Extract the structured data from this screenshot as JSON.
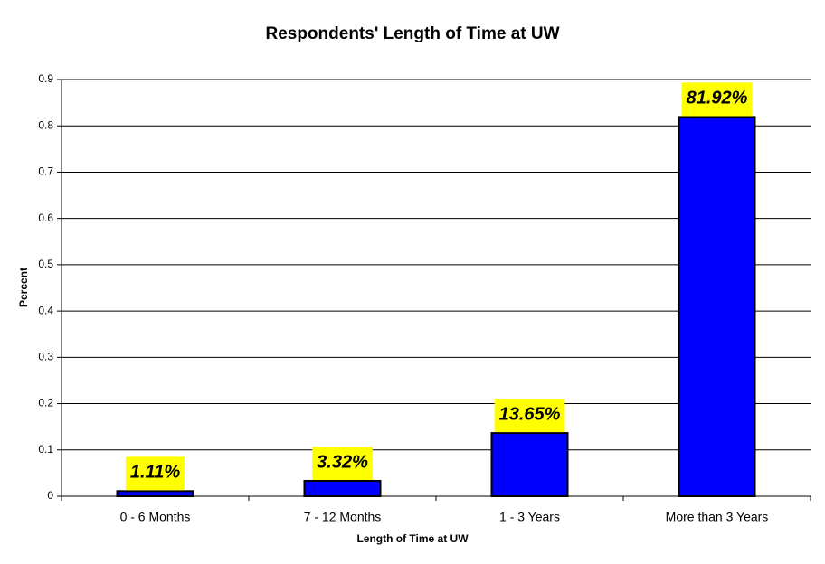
{
  "chart_data": {
    "type": "bar",
    "title": "Respondents' Length of Time at UW",
    "x_label": "Length of Time at UW",
    "y_label": "Percent",
    "categories": [
      "0 - 6 Months",
      "7 - 12 Months",
      "1 - 3 Years",
      "More than 3 Years"
    ],
    "values": [
      0.0111,
      0.0332,
      0.1365,
      0.8192
    ],
    "value_labels": [
      "1.11%",
      "3.32%",
      "13.65%",
      "81.92%"
    ],
    "color": "#0000ff",
    "label_background": "#ffff00",
    "ylim": [
      0,
      0.9
    ],
    "yticks": [
      0,
      0.1,
      0.2,
      0.3,
      0.4,
      0.5,
      0.6,
      0.7,
      0.8,
      0.9
    ],
    "grid": true
  }
}
